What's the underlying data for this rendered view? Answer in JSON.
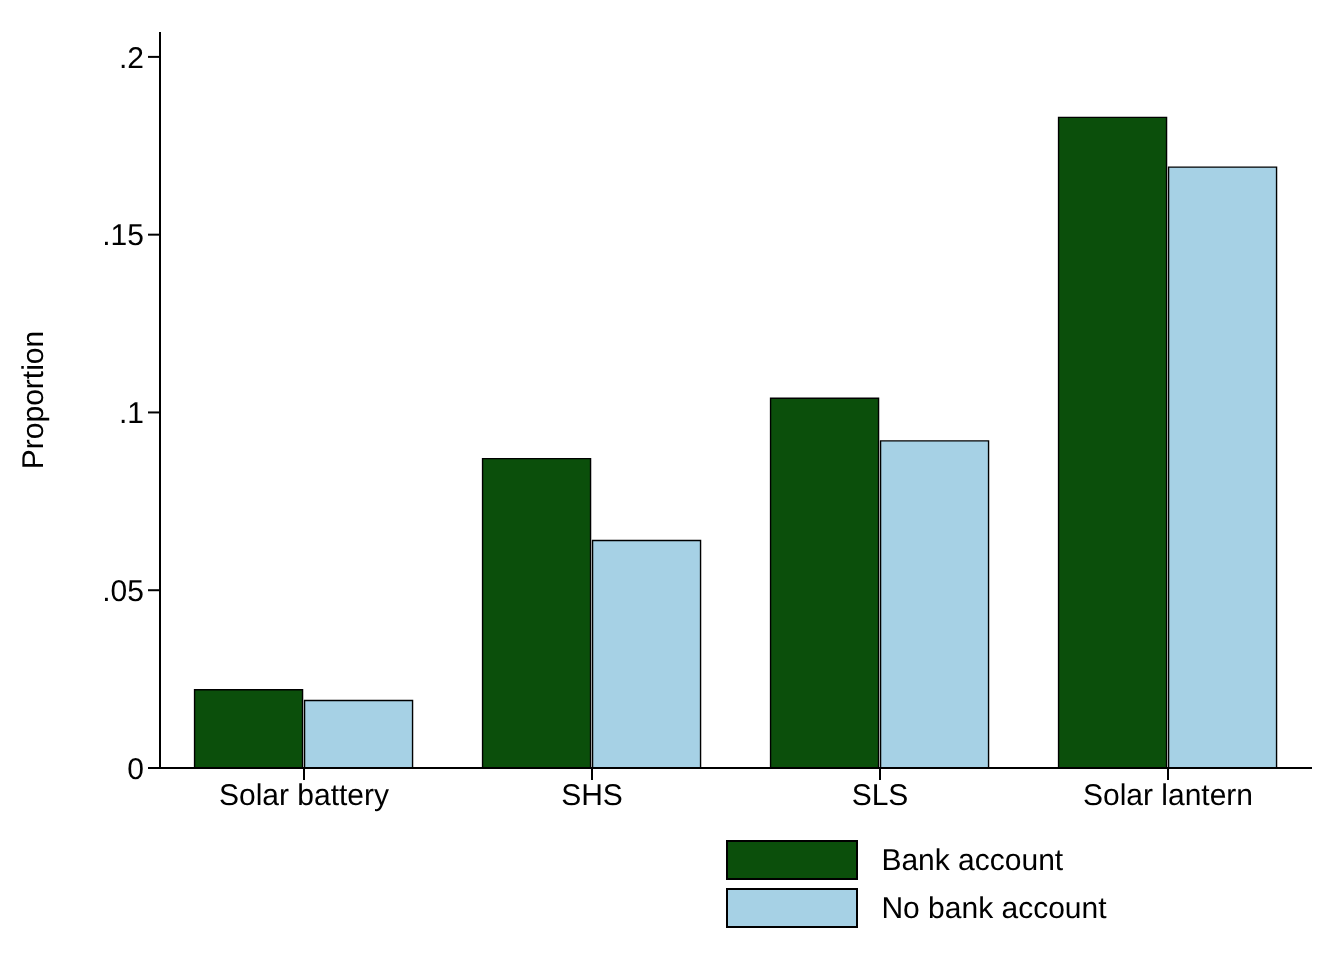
{
  "chart_data": {
    "type": "bar",
    "ylabel": "Proportion",
    "categories": [
      "Solar battery",
      "SHS",
      "SLS",
      "Solar lantern"
    ],
    "series": [
      {
        "name": "Bank account",
        "color": "#0b4f0b",
        "values": [
          0.022,
          0.087,
          0.104,
          0.183
        ]
      },
      {
        "name": "No bank account",
        "color": "#a6d1e5",
        "values": [
          0.019,
          0.064,
          0.092,
          0.169
        ]
      }
    ],
    "ylim": [
      0,
      0.207
    ],
    "yticks": [
      {
        "value": 0,
        "label": "0"
      },
      {
        "value": 0.05,
        "label": ".05"
      },
      {
        "value": 0.1,
        "label": ".1"
      },
      {
        "value": 0.15,
        "label": ".15"
      },
      {
        "value": 0.2,
        "label": ".2"
      }
    ],
    "grid": false,
    "legend": "bottom"
  }
}
